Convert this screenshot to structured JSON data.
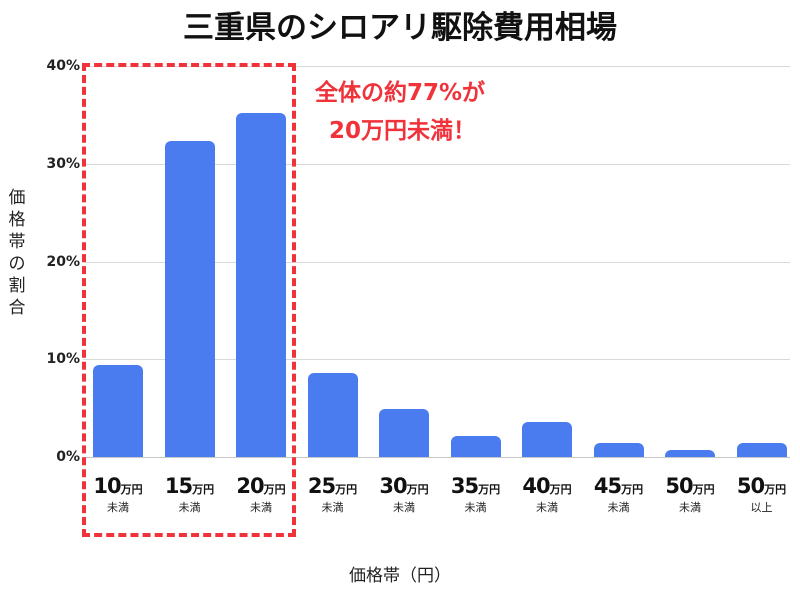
{
  "title": "三重県のシロアリ駆除費用相場",
  "callout": {
    "line1": "全体の約77%が",
    "line2": "20万円未満！",
    "color": "#f0323a"
  },
  "y_axis": {
    "title": "価格帯の割合",
    "ticks": [
      "40%",
      "30%",
      "20%",
      "10%",
      "0%"
    ]
  },
  "x_axis": {
    "title": "価格帯（円）"
  },
  "categories": [
    {
      "num": "10",
      "unit": "万円",
      "sub": "未満"
    },
    {
      "num": "15",
      "unit": "万円",
      "sub": "未満"
    },
    {
      "num": "20",
      "unit": "万円",
      "sub": "未満"
    },
    {
      "num": "25",
      "unit": "万円",
      "sub": "未満"
    },
    {
      "num": "30",
      "unit": "万円",
      "sub": "未満"
    },
    {
      "num": "35",
      "unit": "万円",
      "sub": "未満"
    },
    {
      "num": "40",
      "unit": "万円",
      "sub": "未満"
    },
    {
      "num": "45",
      "unit": "万円",
      "sub": "未満"
    },
    {
      "num": "50",
      "unit": "万円",
      "sub": "未満"
    },
    {
      "num": "50",
      "unit": "万円",
      "sub": "以上"
    }
  ],
  "colors": {
    "bar": "#4a7cf0",
    "highlight": "#f0323a",
    "grid": "#d9d9d9"
  },
  "chart_data": {
    "type": "bar",
    "title": "三重県のシロアリ駆除費用相場",
    "xlabel": "価格帯（円）",
    "ylabel": "価格帯の割合",
    "categories": [
      "10万円未満",
      "15万円未満",
      "20万円未満",
      "25万円未満",
      "30万円未満",
      "35万円未満",
      "40万円未満",
      "45万円未満",
      "50万円未満",
      "50万円以上"
    ],
    "values": [
      9.4,
      32.3,
      35.2,
      8.6,
      4.9,
      2.1,
      3.6,
      1.4,
      0.7,
      1.4
    ],
    "unit": "%",
    "ylim": [
      0,
      40
    ],
    "yticks": [
      0,
      10,
      20,
      30,
      40
    ],
    "grid": true,
    "legend": null,
    "annotations": [
      {
        "text": "全体の約77%が 20万円未満！",
        "highlighted_categories": [
          "10万円未満",
          "15万円未満",
          "20万円未満"
        ],
        "style": "red dashed box"
      }
    ]
  }
}
